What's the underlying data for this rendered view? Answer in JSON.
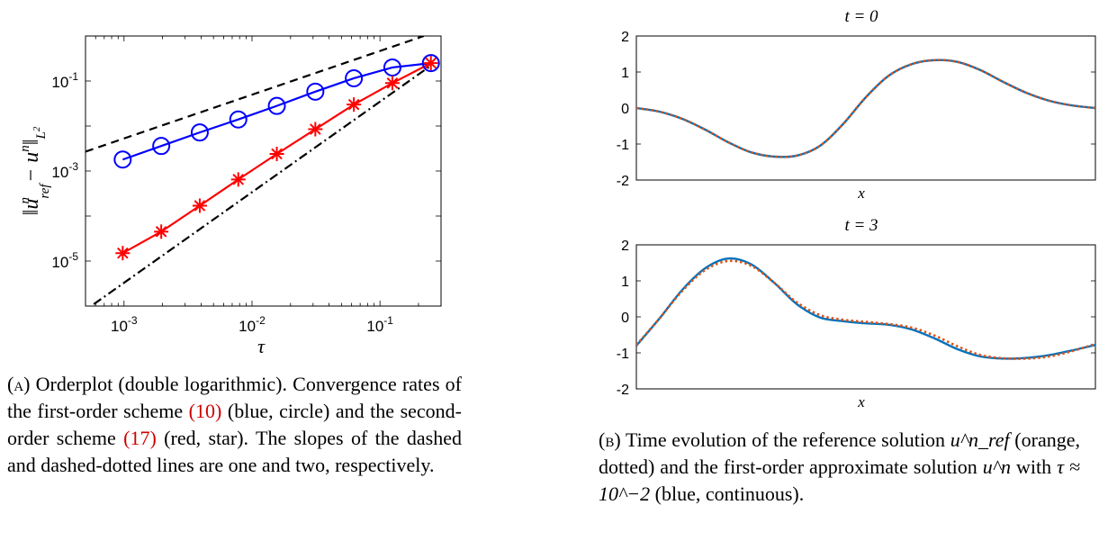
{
  "figure_a": {
    "chart_data": {
      "type": "line",
      "xscale": "log",
      "yscale": "log",
      "xlim": [
        0.0005,
        0.3
      ],
      "ylim": [
        1e-06,
        1
      ],
      "xlabel": "τ",
      "ylabel": "||u^n_ref − u^n||_{L²}",
      "xticks": [
        "10-3",
        "10-2",
        "10-1"
      ],
      "yticks": [
        "10-5",
        "10-3",
        "10-1"
      ],
      "series": [
        {
          "name": "first-order",
          "color": "#0000ff",
          "marker": "circle",
          "x": [
            0.0009766,
            0.001953,
            0.003906,
            0.007813,
            0.01563,
            0.03125,
            0.0625,
            0.125,
            0.25
          ],
          "y": [
            0.0018,
            0.0036,
            0.0072,
            0.014,
            0.028,
            0.058,
            0.115,
            0.2,
            0.25
          ]
        },
        {
          "name": "second-order",
          "color": "#ff0000",
          "marker": "star",
          "x": [
            0.0009766,
            0.001953,
            0.003906,
            0.007813,
            0.01563,
            0.03125,
            0.0625,
            0.125,
            0.25
          ],
          "y": [
            1.5e-05,
            4.5e-05,
            0.00017,
            0.00065,
            0.0024,
            0.0085,
            0.03,
            0.09,
            0.25
          ]
        },
        {
          "name": "slope one",
          "color": "#000000",
          "style": "dashed",
          "x": [
            0.0005,
            0.22
          ],
          "y": [
            0.0027,
            1.0
          ]
        },
        {
          "name": "slope two",
          "color": "#000000",
          "style": "dashdot",
          "x": [
            0.00058,
            0.25
          ],
          "y": [
            1.1e-06,
            0.22
          ]
        }
      ]
    },
    "caption": {
      "tag": "(a)",
      "text1": " Orderplot (double logarithmic). Convergence rates of the first-order scheme ",
      "ref1": "(10)",
      "text2": " (blue, circle) and the second-order scheme ",
      "ref2": "(17)",
      "text3": " (red, star). The slopes of the dashed and dashed-dotted lines are one and two, respectively."
    }
  },
  "figure_b": {
    "chart_data": [
      {
        "type": "line",
        "title": "t = 0",
        "xlabel": "x",
        "ylim": [
          -2,
          2
        ],
        "yticks": [
          "2",
          "1",
          "0",
          "-1",
          "-2"
        ],
        "series": [
          {
            "name": "reference",
            "color": "#d95319",
            "style": "dotted",
            "x": [
              0,
              0.05,
              0.1,
              0.15,
              0.2,
              0.25,
              0.3,
              0.35,
              0.4,
              0.45,
              0.5,
              0.55,
              0.6,
              0.65,
              0.7,
              0.75,
              0.8,
              0.85,
              0.9,
              0.95,
              1.0
            ],
            "y": [
              0.0,
              -0.1,
              -0.3,
              -0.6,
              -0.95,
              -1.23,
              -1.35,
              -1.32,
              -1.05,
              -0.45,
              0.3,
              0.9,
              1.22,
              1.33,
              1.28,
              1.05,
              0.72,
              0.42,
              0.2,
              0.07,
              0.0
            ]
          },
          {
            "name": "first-order",
            "color": "#0072bd",
            "style": "solid",
            "x": [
              0,
              0.05,
              0.1,
              0.15,
              0.2,
              0.25,
              0.3,
              0.35,
              0.4,
              0.45,
              0.5,
              0.55,
              0.6,
              0.65,
              0.7,
              0.75,
              0.8,
              0.85,
              0.9,
              0.95,
              1.0
            ],
            "y": [
              0.0,
              -0.1,
              -0.3,
              -0.6,
              -0.95,
              -1.23,
              -1.35,
              -1.32,
              -1.05,
              -0.45,
              0.3,
              0.9,
              1.22,
              1.33,
              1.28,
              1.05,
              0.72,
              0.42,
              0.2,
              0.07,
              0.0
            ]
          }
        ]
      },
      {
        "type": "line",
        "title": "t = 3",
        "xlabel": "x",
        "ylim": [
          -2,
          2
        ],
        "yticks": [
          "2",
          "1",
          "0",
          "-1",
          "-2"
        ],
        "series": [
          {
            "name": "reference",
            "color": "#d95319",
            "style": "dotted",
            "x": [
              0,
              0.05,
              0.1,
              0.15,
              0.2,
              0.25,
              0.3,
              0.35,
              0.4,
              0.45,
              0.5,
              0.55,
              0.6,
              0.65,
              0.7,
              0.75,
              0.8,
              0.85,
              0.9,
              0.95,
              1.0
            ],
            "y": [
              -0.78,
              -0.05,
              0.72,
              1.3,
              1.55,
              1.42,
              0.95,
              0.4,
              0.05,
              -0.08,
              -0.14,
              -0.2,
              -0.3,
              -0.52,
              -0.82,
              -1.06,
              -1.15,
              -1.16,
              -1.1,
              -0.95,
              -0.75
            ]
          },
          {
            "name": "first-order",
            "color": "#0072bd",
            "style": "solid",
            "x": [
              0,
              0.05,
              0.1,
              0.15,
              0.2,
              0.25,
              0.3,
              0.35,
              0.4,
              0.45,
              0.5,
              0.55,
              0.6,
              0.65,
              0.7,
              0.75,
              0.8,
              0.85,
              0.9,
              0.95,
              1.0
            ],
            "y": [
              -0.8,
              -0.05,
              0.75,
              1.35,
              1.62,
              1.46,
              0.95,
              0.35,
              -0.02,
              -0.12,
              -0.18,
              -0.22,
              -0.35,
              -0.6,
              -0.9,
              -1.1,
              -1.16,
              -1.14,
              -1.06,
              -0.93,
              -0.78
            ]
          }
        ]
      }
    ],
    "caption": {
      "tag": "(b)",
      "text1": " Time evolution of the reference solution ",
      "math1": "u^n_ref",
      "text2": " (orange, dotted) and the first-order approximate solution ",
      "math2": "u^n",
      "text3": " with ",
      "math3": "τ ≈ 10^−2",
      "text4": " (blue, continuous)."
    }
  }
}
